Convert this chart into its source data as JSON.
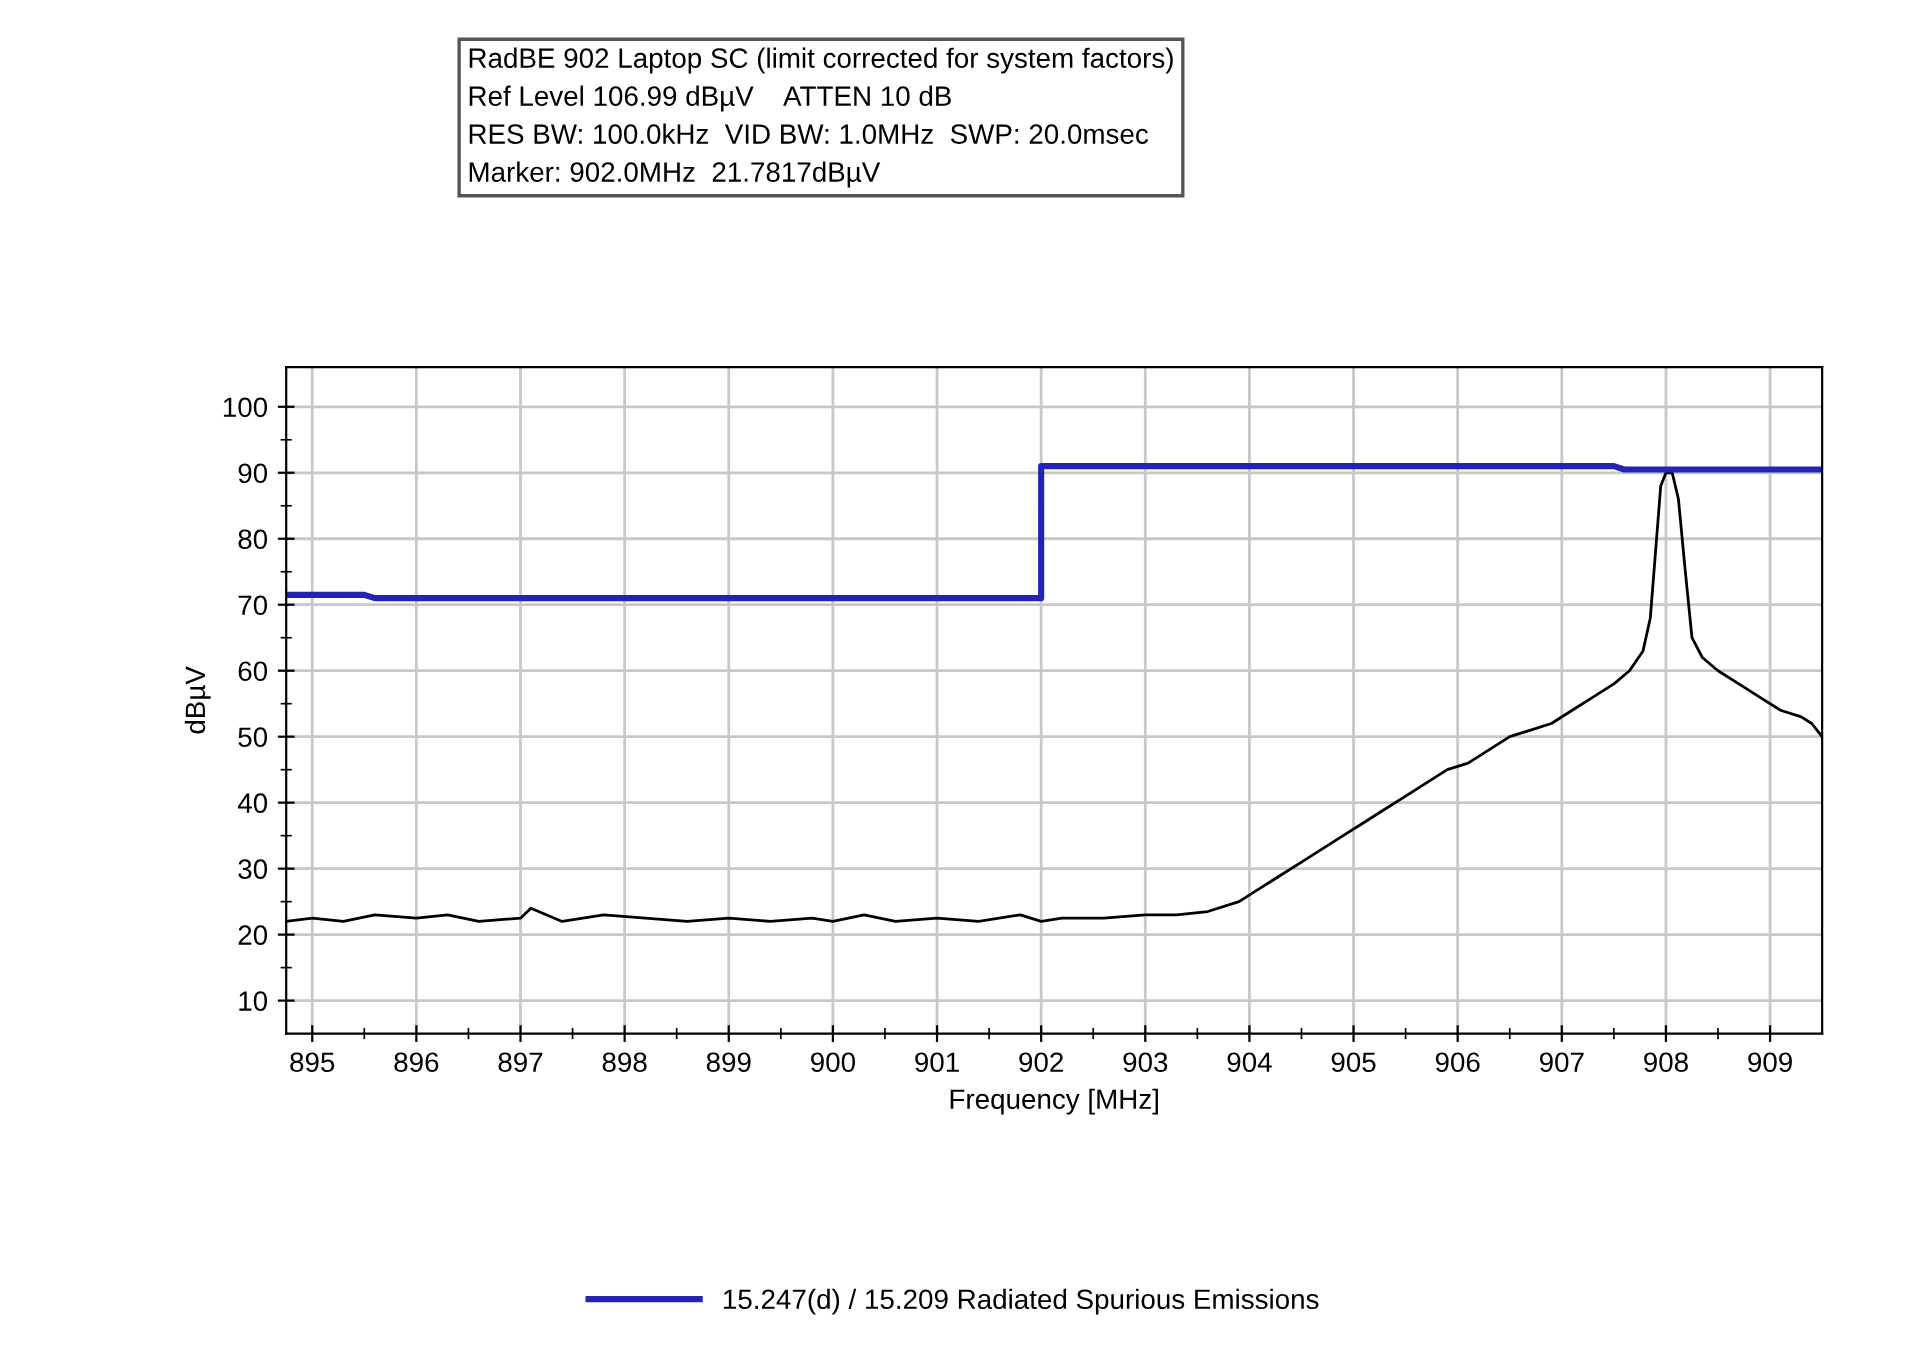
{
  "chart_data": {
    "type": "line",
    "title": "RadBE 902 Laptop SC (limit corrected for system factors)",
    "annotations": [
      "Ref Level 106.99 dBµV    ATTEN 10 dB",
      "RES BW: 100.0kHz  VID BW: 1.0MHz  SWP: 20.0msec",
      "Marker: 902.0MHz  21.7817dBµV"
    ],
    "xlabel": "Frequency [MHz]",
    "ylabel": "dBµV",
    "xlim": [
      894.75,
      909.5
    ],
    "ylim": [
      5,
      106
    ],
    "xticks": [
      895,
      {
        "value": 895.5,
        "label": null
      },
      896,
      {
        "value": 896.5,
        "label": null
      },
      897,
      {
        "value": 897.5,
        "label": null
      },
      898,
      {
        "value": 898.5,
        "label": null
      },
      899,
      {
        "value": 899.5,
        "label": null
      },
      900,
      {
        "value": 900.5,
        "label": null
      },
      901,
      {
        "value": 901.5,
        "label": null
      },
      902,
      {
        "value": 902.5,
        "label": null
      },
      903,
      {
        "value": 903.5,
        "label": null
      },
      904,
      {
        "value": 904.5,
        "label": null
      },
      905,
      {
        "value": 905.5,
        "label": null
      },
      906,
      {
        "value": 906.5,
        "label": null
      },
      907,
      {
        "value": 907.5,
        "label": null
      },
      908,
      {
        "value": 908.5,
        "label": null
      },
      909
    ],
    "yticks": [
      10,
      {
        "value": 15,
        "label": null
      },
      20,
      {
        "value": 25,
        "label": null
      },
      30,
      {
        "value": 35,
        "label": null
      },
      40,
      {
        "value": 45,
        "label": null
      },
      50,
      {
        "value": 55,
        "label": null
      },
      60,
      {
        "value": 65,
        "label": null
      },
      70,
      {
        "value": 75,
        "label": null
      },
      80,
      {
        "value": 85,
        "label": null
      },
      90,
      {
        "value": 95,
        "label": null
      },
      100
    ],
    "grid": true,
    "legend": "bottom",
    "marker": "none",
    "line_style": "solid",
    "series": [
      {
        "name": null,
        "color": "#000000",
        "x": [
          894.75,
          895.0,
          895.3,
          895.6,
          896.0,
          896.3,
          896.6,
          897.0,
          897.1,
          897.4,
          897.8,
          898.2,
          898.6,
          899.0,
          899.4,
          899.8,
          900.0,
          900.3,
          900.6,
          901.0,
          901.4,
          901.8,
          902.0,
          902.2,
          902.6,
          903.0,
          903.3,
          903.6,
          903.9,
          904.1,
          904.3,
          904.5,
          904.7,
          904.9,
          905.1,
          905.3,
          905.5,
          905.7,
          905.9,
          906.1,
          906.3,
          906.5,
          906.7,
          906.9,
          907.1,
          907.3,
          907.5,
          907.65,
          907.78,
          907.85,
          907.9,
          907.95,
          908.0,
          908.06,
          908.12,
          908.18,
          908.25,
          908.35,
          908.5,
          908.7,
          908.9,
          909.1,
          909.3,
          909.4,
          909.5
        ],
        "values": [
          22,
          22.5,
          22,
          23,
          22.5,
          23,
          22,
          22.5,
          24,
          22,
          23,
          22.5,
          22,
          22.5,
          22,
          22.5,
          22,
          23,
          22,
          22.5,
          22,
          23,
          22,
          22.5,
          22.5,
          23,
          23,
          23.5,
          25,
          27,
          29,
          31,
          33,
          35,
          37,
          39,
          41,
          43,
          45,
          46,
          48,
          50,
          51,
          52,
          54,
          56,
          58,
          60,
          63,
          68,
          78,
          88,
          90,
          90,
          86,
          76,
          65,
          62,
          60,
          58,
          56,
          54,
          53,
          52,
          50
        ]
      },
      {
        "name": "15.247(d) / 15.209 Radiated Spurious Emissions",
        "color": "#2424b4",
        "x": [
          894.75,
          895.5,
          895.6,
          902.0,
          902.0,
          907.5,
          907.6,
          909.5
        ],
        "values": [
          71.5,
          71.5,
          71,
          71,
          91,
          91,
          90.5,
          90.5
        ]
      }
    ]
  }
}
